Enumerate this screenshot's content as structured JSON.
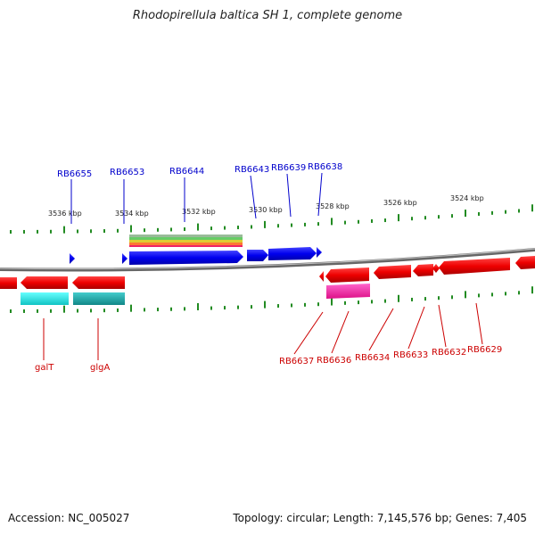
{
  "header": {
    "title": "Rhodopirellula baltica SH 1, complete genome"
  },
  "footer": {
    "accession": "Accession: NC_005027",
    "summary": "Topology: circular; Length: 7,145,576 bp; Genes: 7,405"
  },
  "scale": {
    "ticks": [
      "3536 kbp",
      "3534 kbp",
      "3532 kbp",
      "3530 kbp",
      "3528 kbp",
      "3526 kbp",
      "3524 kbp"
    ]
  },
  "genes_top": [
    "RB6655",
    "RB6653",
    "RB6644",
    "RB6643",
    "RB6639",
    "RB6638"
  ],
  "genes_bottom": [
    "galT",
    "glgA",
    "RB6637",
    "RB6636",
    "RB6634",
    "RB6633",
    "RB6632",
    "RB6629"
  ],
  "colors": {
    "forward_gene": "#0000ee",
    "reverse_gene": "#ee0000",
    "backbone": "#888888",
    "tick": "#228b22",
    "cyan_feature": "#22dddd",
    "teal_feature": "#22aaaa",
    "magenta_feature": "#ff33aa"
  }
}
